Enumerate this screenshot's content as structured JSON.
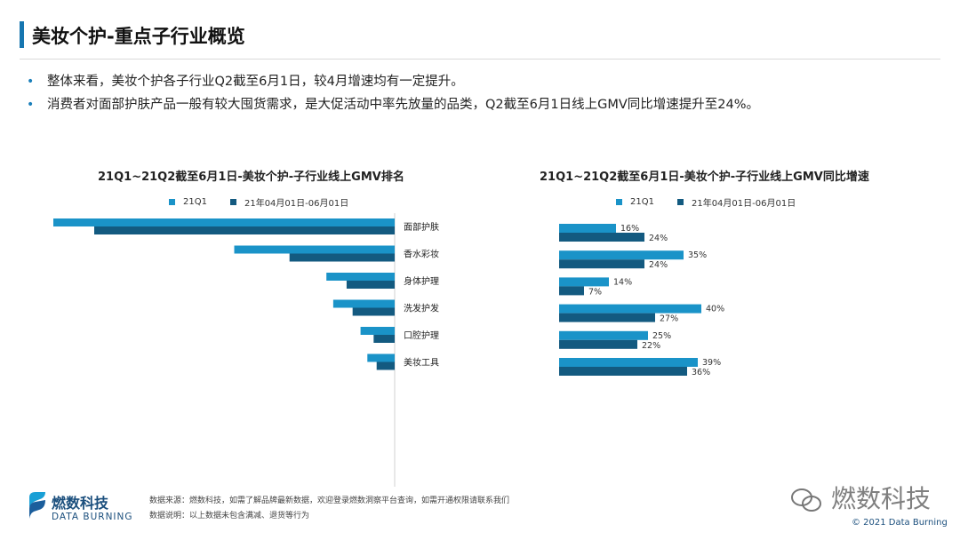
{
  "header": {
    "title": "美妆个护-重点子行业概览"
  },
  "bullets": [
    "整体来看，美妆个护各子行业Q2截至6月1日，较4月增速均有一定提升。",
    "消费者对面部护肤产品一般有较大囤货需求，是大促活动中率先放量的品类，Q2截至6月1日线上GMV同比增速提升至24%。"
  ],
  "bullet_marker": "•",
  "colors": {
    "series1": "#1a93c8",
    "series2": "#135a80",
    "accent": "#1676b0"
  },
  "chart_data": [
    {
      "type": "bar",
      "orientation": "horizontal",
      "title": "21Q1~21Q2截至6月1日-美妆个护-子行业线上GMV排名",
      "categories": [
        "面部护肤",
        "香水彩妆",
        "身体护理",
        "洗发护发",
        "口腔护理",
        "美妆工具"
      ],
      "series": [
        {
          "name": "21Q1",
          "values": [
            100,
            47,
            20,
            18,
            10,
            8
          ]
        },
        {
          "name": "21年04月01日-06月01日",
          "values": [
            100,
            35,
            16,
            14,
            7,
            6
          ]
        }
      ],
      "value_labels": false
    },
    {
      "type": "bar",
      "orientation": "horizontal",
      "title": "21Q1~21Q2截至6月1日-美妆个护-子行业线上GMV同比增速",
      "categories": [
        "面部护肤",
        "香水彩妆",
        "身体护理",
        "洗发护发",
        "口腔护理",
        "美妆工具"
      ],
      "series": [
        {
          "name": "21Q1",
          "values": [
            16,
            35,
            14,
            40,
            25,
            39
          ],
          "labels": [
            "16%",
            "35%",
            "14%",
            "40%",
            "25%",
            "39%"
          ]
        },
        {
          "name": "21年04月01日-06月01日",
          "values": [
            24,
            24,
            7,
            27,
            22,
            36
          ],
          "labels": [
            "24%",
            "24%",
            "7%",
            "27%",
            "22%",
            "36%"
          ]
        }
      ],
      "value_labels": true
    }
  ],
  "footer": {
    "brand_cn": "燃数科技",
    "brand_en": "DATA BURNING",
    "source_note": "数据来源：燃数科技，如需了解品牌最新数据，欢迎登录燃数洞察平台查询，如需开通权限请联系我们",
    "explain_note": "数据说明：以上数据未包含满减、退货等行为",
    "watermark": "燃数科技",
    "copyright": "© 2021 Data Burning"
  }
}
